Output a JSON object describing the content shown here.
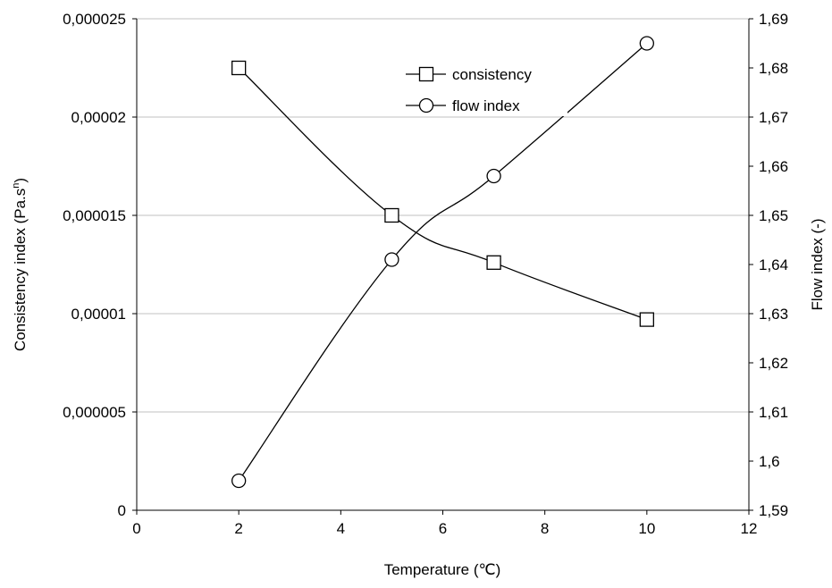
{
  "chart_data": {
    "type": "line",
    "xlabel": "Temperature (℃)",
    "ylabel_left": "Consistency index (Pa.s",
    "ylabel_left_superscript": "n",
    "ylabel_left_suffix": ")",
    "ylabel_right": "Flow index (-)",
    "xlim": [
      0,
      12
    ],
    "ylim_left": [
      0,
      2.5e-05
    ],
    "ylim_right": [
      1.59,
      1.69
    ],
    "x_ticks": [
      "0",
      "2",
      "4",
      "6",
      "8",
      "10",
      "12"
    ],
    "y_left_ticks": [
      "0",
      "0,000005",
      "0,00001",
      "0,000015",
      "0,00002",
      "0,000025"
    ],
    "y_right_ticks": [
      "1,59",
      "1,6",
      "1,61",
      "1,62",
      "1,63",
      "1,64",
      "1,65",
      "1,66",
      "1,67",
      "1,68",
      "1,69"
    ],
    "grid": "horizontal",
    "legend_position": "top-center",
    "series": [
      {
        "name": "consistency",
        "axis": "left",
        "marker": "square",
        "x": [
          2,
          5,
          7,
          10
        ],
        "y": [
          2.25e-05,
          1.5e-05,
          1.26e-05,
          9.7e-06
        ]
      },
      {
        "name": "flow index",
        "axis": "right",
        "marker": "circle",
        "x": [
          2,
          5,
          7,
          10
        ],
        "y": [
          1.596,
          1.641,
          1.658,
          1.685
        ]
      }
    ],
    "colors": {
      "line": "#000000",
      "grid": "#c0c0c0",
      "marker_fill": "#ffffff"
    }
  }
}
